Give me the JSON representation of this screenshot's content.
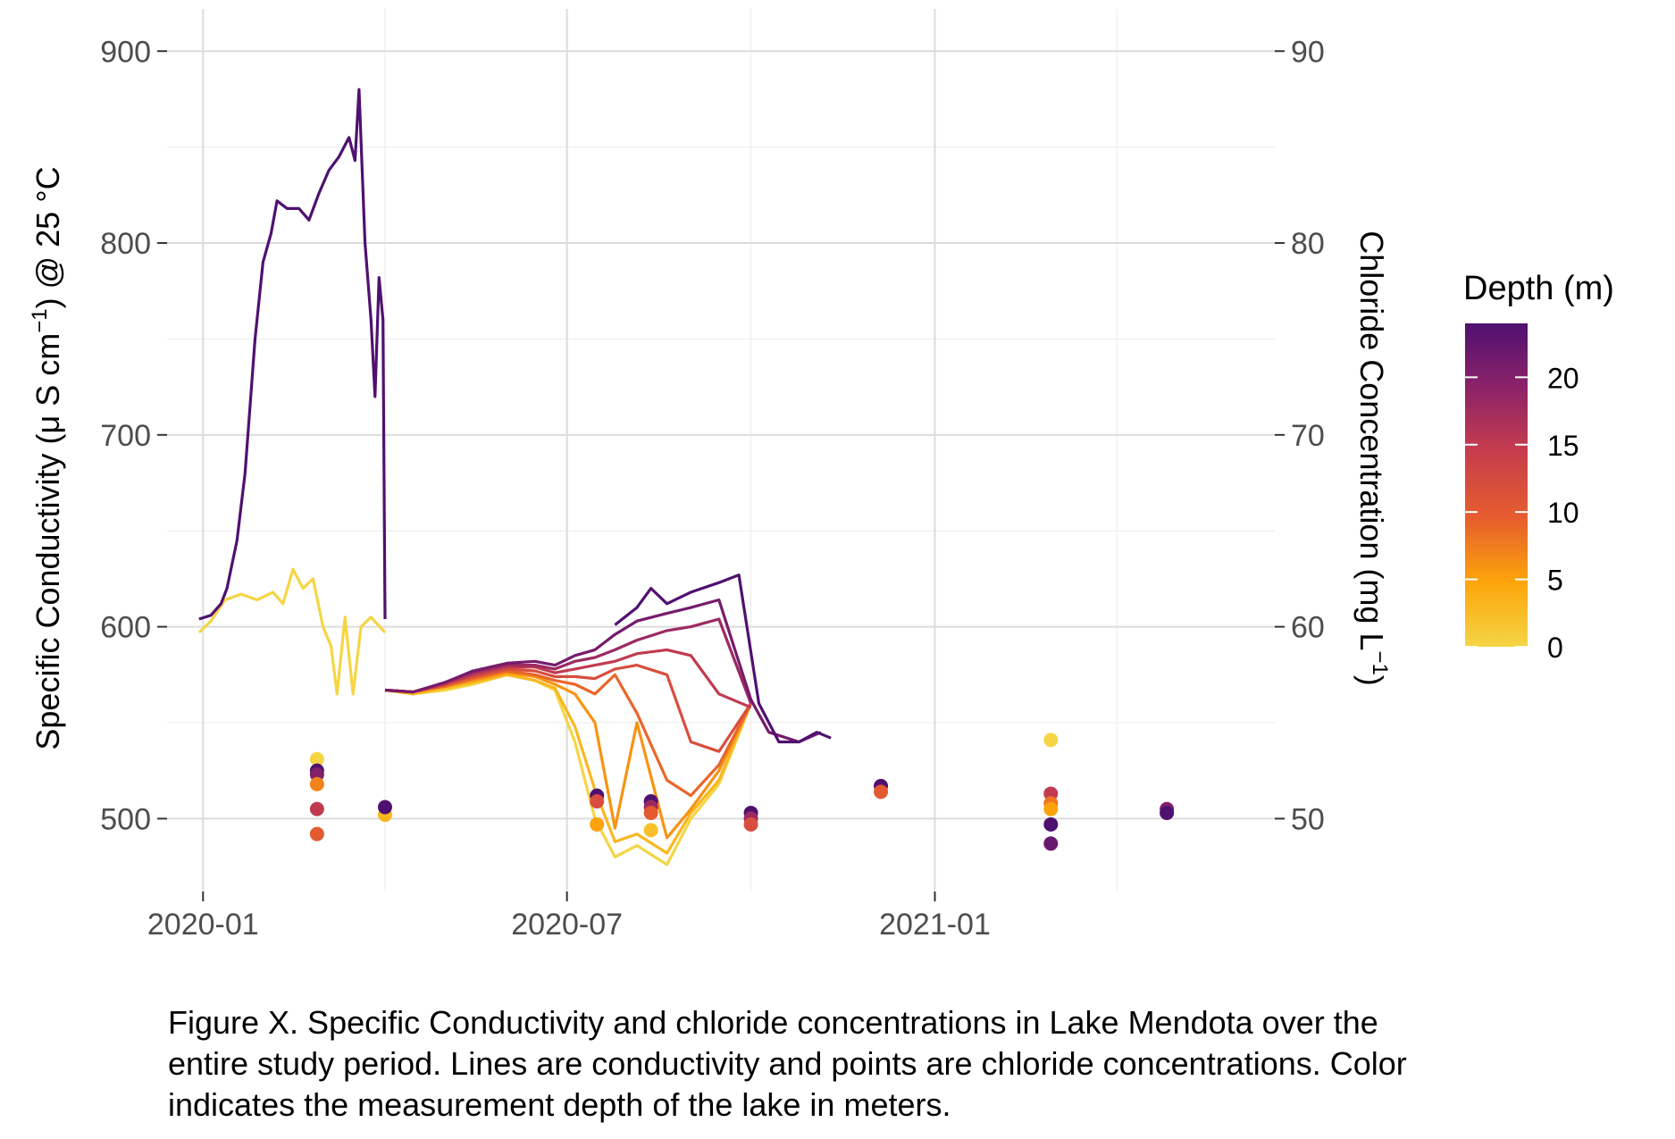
{
  "chart_data": {
    "type": "line",
    "ylabel": "Specific Conductivity (μ S cm⁻¹) @ 25 °C",
    "ylabel_parts": {
      "a": "Specific Conductivity ",
      "b": "(μ S cm",
      "sup": "−1",
      "c": ") @ 25 °C"
    },
    "y2label": "Chloride Concentration (mg L⁻¹)",
    "y2label_parts": {
      "a": "Chloride Concentration (mg L",
      "sup": "−1",
      "c": ")"
    },
    "ylim": [
      462,
      922
    ],
    "y2lim": [
      46.2,
      92.2
    ],
    "y_ticks": [
      500,
      600,
      700,
      800,
      900
    ],
    "y2_ticks": [
      50,
      60,
      70,
      80,
      90
    ],
    "x_ticks": [
      "2020-01-01",
      "2020-07-01",
      "2021-01-01"
    ],
    "x_tick_labels": [
      "2020-01",
      "2020-07",
      "2021-01"
    ],
    "xlim": [
      "2019-12-14",
      "2021-06-20"
    ],
    "grid": true,
    "legend": {
      "title": "Depth (m)",
      "position": "right",
      "ticks": [
        0,
        5,
        10,
        15,
        20
      ],
      "range": [
        0,
        24
      ],
      "colors": [
        "#f5d545",
        "#fca50a",
        "#e65d2f",
        "#c73e4c",
        "#8d2369",
        "#4f1170"
      ]
    },
    "series": [
      {
        "depth": 24,
        "role": "conductivity",
        "points": [
          [
            "2019-12-30",
            604
          ],
          [
            "2020-01-05",
            606
          ],
          [
            "2020-01-10",
            612
          ],
          [
            "2020-01-13",
            620
          ],
          [
            "2020-01-18",
            645
          ],
          [
            "2020-01-22",
            680
          ],
          [
            "2020-01-27",
            750
          ],
          [
            "2020-01-31",
            790
          ],
          [
            "2020-02-04",
            805
          ],
          [
            "2020-02-07",
            822
          ],
          [
            "2020-02-12",
            818
          ],
          [
            "2020-02-18",
            818
          ],
          [
            "2020-02-23",
            812
          ],
          [
            "2020-02-28",
            826
          ],
          [
            "2020-03-04",
            838
          ],
          [
            "2020-03-09",
            845
          ],
          [
            "2020-03-14",
            855
          ],
          [
            "2020-03-17",
            843
          ],
          [
            "2020-03-19",
            880
          ],
          [
            "2020-03-22",
            800
          ],
          [
            "2020-03-25",
            760
          ],
          [
            "2020-03-27",
            720
          ],
          [
            "2020-03-29",
            782
          ],
          [
            "2020-03-31",
            760
          ],
          [
            "2020-04-01",
            604
          ]
        ]
      },
      {
        "depth": 0,
        "role": "conductivity",
        "points": [
          [
            "2019-12-30",
            597
          ],
          [
            "2020-01-05",
            603
          ],
          [
            "2020-01-12",
            614
          ],
          [
            "2020-01-20",
            617
          ],
          [
            "2020-01-28",
            614
          ],
          [
            "2020-02-05",
            618
          ],
          [
            "2020-02-10",
            612
          ],
          [
            "2020-02-15",
            630
          ],
          [
            "2020-02-20",
            620
          ],
          [
            "2020-02-25",
            625
          ],
          [
            "2020-03-01",
            600
          ],
          [
            "2020-03-05",
            590
          ],
          [
            "2020-03-08",
            565
          ],
          [
            "2020-03-12",
            605
          ],
          [
            "2020-03-16",
            565
          ],
          [
            "2020-03-20",
            600
          ],
          [
            "2020-03-25",
            605
          ],
          [
            "2020-04-01",
            597
          ]
        ]
      },
      {
        "depth": 0,
        "role": "conductivity",
        "points": [
          [
            "2020-04-01",
            567
          ],
          [
            "2020-04-15",
            565
          ],
          [
            "2020-05-01",
            567
          ],
          [
            "2020-05-15",
            570
          ],
          [
            "2020-06-01",
            575
          ],
          [
            "2020-06-15",
            572
          ],
          [
            "2020-06-25",
            567
          ],
          [
            "2020-07-05",
            540
          ],
          [
            "2020-07-15",
            500
          ],
          [
            "2020-07-25",
            480
          ],
          [
            "2020-08-05",
            486
          ],
          [
            "2020-08-20",
            476
          ],
          [
            "2020-09-01",
            500
          ],
          [
            "2020-09-15",
            518
          ],
          [
            "2020-10-01",
            560
          ]
        ]
      },
      {
        "depth": 3,
        "role": "conductivity",
        "points": [
          [
            "2020-04-01",
            567
          ],
          [
            "2020-04-15",
            565
          ],
          [
            "2020-05-01",
            568
          ],
          [
            "2020-05-15",
            571
          ],
          [
            "2020-06-01",
            575
          ],
          [
            "2020-06-15",
            572
          ],
          [
            "2020-06-25",
            568
          ],
          [
            "2020-07-05",
            548
          ],
          [
            "2020-07-15",
            515
          ],
          [
            "2020-07-25",
            488
          ],
          [
            "2020-08-05",
            492
          ],
          [
            "2020-08-20",
            482
          ],
          [
            "2020-09-01",
            503
          ],
          [
            "2020-09-15",
            520
          ],
          [
            "2020-10-01",
            560
          ]
        ]
      },
      {
        "depth": 6,
        "role": "conductivity",
        "points": [
          [
            "2020-04-01",
            567
          ],
          [
            "2020-04-15",
            566
          ],
          [
            "2020-05-01",
            569
          ],
          [
            "2020-05-15",
            572
          ],
          [
            "2020-06-01",
            576
          ],
          [
            "2020-06-15",
            574
          ],
          [
            "2020-06-25",
            570
          ],
          [
            "2020-07-05",
            565
          ],
          [
            "2020-07-15",
            550
          ],
          [
            "2020-07-25",
            495
          ],
          [
            "2020-08-05",
            550
          ],
          [
            "2020-08-20",
            490
          ],
          [
            "2020-09-01",
            505
          ],
          [
            "2020-09-15",
            525
          ],
          [
            "2020-10-01",
            560
          ]
        ]
      },
      {
        "depth": 9,
        "role": "conductivity",
        "points": [
          [
            "2020-04-01",
            567
          ],
          [
            "2020-04-15",
            566
          ],
          [
            "2020-05-01",
            569
          ],
          [
            "2020-05-15",
            573
          ],
          [
            "2020-06-01",
            577
          ],
          [
            "2020-06-15",
            575
          ],
          [
            "2020-06-25",
            572
          ],
          [
            "2020-07-05",
            570
          ],
          [
            "2020-07-15",
            565
          ],
          [
            "2020-07-25",
            575
          ],
          [
            "2020-08-05",
            555
          ],
          [
            "2020-08-20",
            520
          ],
          [
            "2020-09-01",
            512
          ],
          [
            "2020-09-15",
            528
          ],
          [
            "2020-10-01",
            560
          ]
        ]
      },
      {
        "depth": 12,
        "role": "conductivity",
        "points": [
          [
            "2020-04-01",
            567
          ],
          [
            "2020-04-15",
            566
          ],
          [
            "2020-05-01",
            570
          ],
          [
            "2020-05-15",
            574
          ],
          [
            "2020-06-01",
            578
          ],
          [
            "2020-06-15",
            577
          ],
          [
            "2020-06-25",
            574
          ],
          [
            "2020-07-05",
            574
          ],
          [
            "2020-07-15",
            573
          ],
          [
            "2020-07-25",
            578
          ],
          [
            "2020-08-05",
            580
          ],
          [
            "2020-08-20",
            575
          ],
          [
            "2020-09-01",
            540
          ],
          [
            "2020-09-15",
            535
          ],
          [
            "2020-10-01",
            560
          ]
        ]
      },
      {
        "depth": 15,
        "role": "conductivity",
        "points": [
          [
            "2020-04-01",
            567
          ],
          [
            "2020-04-15",
            566
          ],
          [
            "2020-05-01",
            570
          ],
          [
            "2020-05-15",
            575
          ],
          [
            "2020-06-01",
            579
          ],
          [
            "2020-06-15",
            579
          ],
          [
            "2020-06-25",
            576
          ],
          [
            "2020-07-05",
            578
          ],
          [
            "2020-07-15",
            580
          ],
          [
            "2020-07-25",
            582
          ],
          [
            "2020-08-05",
            586
          ],
          [
            "2020-08-20",
            588
          ],
          [
            "2020-09-01",
            585
          ],
          [
            "2020-09-15",
            565
          ],
          [
            "2020-10-01",
            558
          ]
        ]
      },
      {
        "depth": 18,
        "role": "conductivity",
        "points": [
          [
            "2020-04-01",
            567
          ],
          [
            "2020-04-15",
            566
          ],
          [
            "2020-05-01",
            571
          ],
          [
            "2020-05-15",
            576
          ],
          [
            "2020-06-01",
            580
          ],
          [
            "2020-06-15",
            580
          ],
          [
            "2020-06-25",
            578
          ],
          [
            "2020-07-05",
            582
          ],
          [
            "2020-07-15",
            584
          ],
          [
            "2020-07-25",
            588
          ],
          [
            "2020-08-05",
            593
          ],
          [
            "2020-08-20",
            598
          ],
          [
            "2020-09-01",
            600
          ],
          [
            "2020-09-15",
            604
          ],
          [
            "2020-10-01",
            560
          ]
        ]
      },
      {
        "depth": 21,
        "role": "conductivity",
        "points": [
          [
            "2020-04-01",
            567
          ],
          [
            "2020-04-15",
            566
          ],
          [
            "2020-05-01",
            571
          ],
          [
            "2020-05-15",
            577
          ],
          [
            "2020-06-01",
            581
          ],
          [
            "2020-06-15",
            582
          ],
          [
            "2020-06-25",
            580
          ],
          [
            "2020-07-05",
            585
          ],
          [
            "2020-07-15",
            588
          ],
          [
            "2020-07-25",
            596
          ],
          [
            "2020-08-05",
            603
          ],
          [
            "2020-08-20",
            607
          ],
          [
            "2020-09-01",
            610
          ],
          [
            "2020-09-15",
            614
          ],
          [
            "2020-10-01",
            562
          ],
          [
            "2020-10-10",
            545
          ],
          [
            "2020-10-25",
            540
          ],
          [
            "2020-11-05",
            545
          ]
        ]
      },
      {
        "depth": 24,
        "role": "conductivity",
        "points": [
          [
            "2020-07-25",
            601
          ],
          [
            "2020-08-05",
            610
          ],
          [
            "2020-08-12",
            620
          ],
          [
            "2020-08-20",
            612
          ],
          [
            "2020-09-01",
            618
          ],
          [
            "2020-09-15",
            623
          ],
          [
            "2020-09-25",
            627
          ],
          [
            "2020-10-05",
            560
          ],
          [
            "2020-10-15",
            540
          ],
          [
            "2020-10-25",
            540
          ],
          [
            "2020-11-03",
            545
          ],
          [
            "2020-11-10",
            542
          ]
        ]
      }
    ],
    "chloride_points": [
      {
        "date": "2020-02-27",
        "depth": 0,
        "value": 53.1
      },
      {
        "date": "2020-02-27",
        "depth": 24,
        "value": 52.5
      },
      {
        "date": "2020-02-27",
        "depth": 20,
        "value": 52.3
      },
      {
        "date": "2020-02-27",
        "depth": 7,
        "value": 51.8
      },
      {
        "date": "2020-02-27",
        "depth": 15,
        "value": 50.5
      },
      {
        "date": "2020-02-27",
        "depth": 10,
        "value": 49.2
      },
      {
        "date": "2020-04-01",
        "depth": 3,
        "value": 50.2
      },
      {
        "date": "2020-04-01",
        "depth": 24,
        "value": 50.6
      },
      {
        "date": "2020-07-16",
        "depth": 24,
        "value": 51.2
      },
      {
        "date": "2020-07-16",
        "depth": 12,
        "value": 50.9
      },
      {
        "date": "2020-07-16",
        "depth": 5,
        "value": 49.7
      },
      {
        "date": "2020-08-12",
        "depth": 24,
        "value": 50.9
      },
      {
        "date": "2020-08-12",
        "depth": 18,
        "value": 50.6
      },
      {
        "date": "2020-08-12",
        "depth": 10,
        "value": 50.3
      },
      {
        "date": "2020-08-12",
        "depth": 2,
        "value": 49.4
      },
      {
        "date": "2020-10-01",
        "depth": 24,
        "value": 50.3
      },
      {
        "date": "2020-10-01",
        "depth": 18,
        "value": 50.0
      },
      {
        "date": "2020-10-01",
        "depth": 12,
        "value": 49.7
      },
      {
        "date": "2020-12-05",
        "depth": 24,
        "value": 51.7
      },
      {
        "date": "2020-12-05",
        "depth": 10,
        "value": 51.4
      },
      {
        "date": "2021-02-28",
        "depth": 0,
        "value": 54.1
      },
      {
        "date": "2021-02-28",
        "depth": 15,
        "value": 51.3
      },
      {
        "date": "2021-02-28",
        "depth": 8,
        "value": 50.8
      },
      {
        "date": "2021-02-28",
        "depth": 5,
        "value": 50.5
      },
      {
        "date": "2021-02-28",
        "depth": 24,
        "value": 49.7
      },
      {
        "date": "2021-02-28",
        "depth": 22,
        "value": 48.7
      },
      {
        "date": "2021-04-27",
        "depth": 20,
        "value": 50.5
      },
      {
        "date": "2021-04-27",
        "depth": 24,
        "value": 50.3
      }
    ]
  },
  "caption": {
    "line1": "Figure X. Specific Conductivity and chloride concentrations in Lake Mendota over the",
    "line2": "entire study period. Lines are conductivity and points are chloride concentrations. Color",
    "line3": "indicates the measurement depth of the lake in meters."
  }
}
